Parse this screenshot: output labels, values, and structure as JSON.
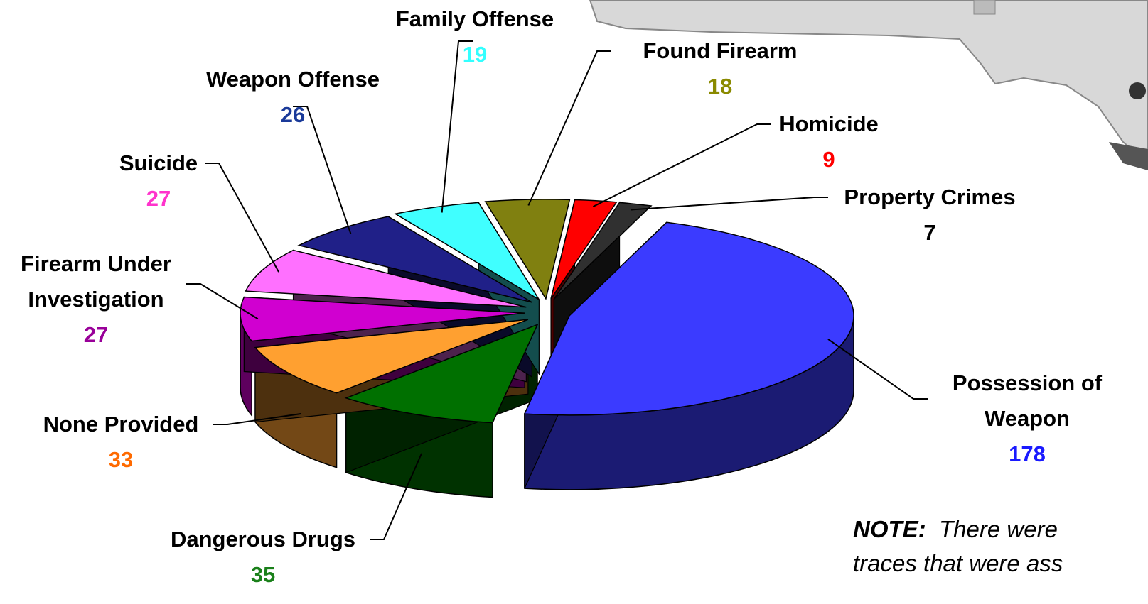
{
  "chart_data": {
    "type": "pie",
    "categories": [
      "Possession of Weapon",
      "Dangerous Drugs",
      "None Provided",
      "Firearm Under Investigation",
      "Suicide",
      "Weapon Offense",
      "Family Offense",
      "Found Firearm",
      "Homicide",
      "Property Crimes"
    ],
    "values": [
      178,
      35,
      33,
      27,
      27,
      26,
      19,
      18,
      9,
      7
    ],
    "colors": [
      "#3b3bff",
      "#007000",
      "#ffa030",
      "#d000d0",
      "#ff70ff",
      "#202088",
      "#40ffff",
      "#808010",
      "#ff0000",
      "#303030"
    ],
    "label_colors": [
      "#1a1aff",
      "#1a801a",
      "#ff6a00",
      "#990099",
      "#ff33cc",
      "#1a3a99",
      "#33ffff",
      "#8a8a00",
      "#ff0000",
      "#000000"
    ]
  },
  "note": {
    "label": "NOTE:",
    "lines": [
      "There were",
      "traces that were ass"
    ]
  }
}
